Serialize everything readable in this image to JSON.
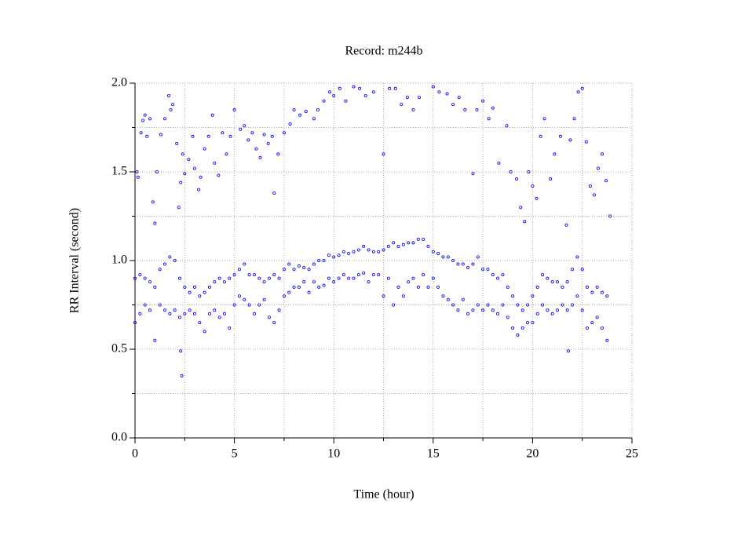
{
  "chart_data": {
    "type": "scatter",
    "title": "Record:  m244b",
    "x_label": "Time (hour)",
    "y_label": "RR Interval (second)",
    "color": "#0000ff",
    "grid": true,
    "xlim": [
      0,
      25
    ],
    "xticks": [
      0,
      5,
      10,
      15,
      20,
      25
    ],
    "xticks_minor": [
      2.5,
      7.5,
      12.5,
      17.5,
      22.5
    ],
    "ylim": [
      0,
      2.0
    ],
    "yticks": [
      {
        "value": 0,
        "label": "0.0"
      },
      {
        "value": 0.5,
        "label": "0.5"
      },
      {
        "value": 1,
        "label": "1.0"
      },
      {
        "value": 1.5,
        "label": "1.5"
      },
      {
        "value": 2,
        "label": "2.0"
      }
    ],
    "yticks_minor": [
      0.25,
      0.75,
      1.25,
      1.75
    ],
    "x": [
      0,
      0,
      0.25,
      0.25,
      0.5,
      0.5,
      0.75,
      0.75,
      1,
      1,
      1.25,
      1.25,
      1.5,
      1.5,
      1.75,
      1.75,
      2,
      2,
      2.25,
      2.25,
      2.5,
      2.5,
      2.75,
      2.75,
      3,
      3,
      3.25,
      3.25,
      3.5,
      3.5,
      3.75,
      3.75,
      4,
      4,
      4.25,
      4.25,
      4.5,
      4.5,
      4.75,
      4.75,
      5,
      5,
      5.25,
      5.25,
      5.5,
      5.5,
      5.75,
      5.75,
      6,
      6,
      6.25,
      6.25,
      6.5,
      6.5,
      6.75,
      6.75,
      7,
      7,
      7.25,
      7.25,
      7.5,
      7.5,
      7.75,
      7.75,
      8,
      8,
      8.25,
      8.25,
      8.5,
      8.5,
      8.75,
      8.75,
      9,
      9,
      9.25,
      9.25,
      9.5,
      9.5,
      9.75,
      9.75,
      10,
      10,
      10.25,
      10.25,
      10.5,
      10.5,
      10.75,
      10.75,
      11,
      11,
      11.25,
      11.25,
      11.5,
      11.5,
      11.75,
      11.75,
      12,
      12,
      12.25,
      12.25,
      12.5,
      12.5,
      12.75,
      12.75,
      13,
      13,
      13.25,
      13.25,
      13.5,
      13.5,
      13.75,
      13.75,
      14,
      14,
      14.25,
      14.25,
      14.5,
      14.5,
      14.75,
      14.75,
      15,
      15,
      15.25,
      15.25,
      15.5,
      15.5,
      15.75,
      15.75,
      16,
      16,
      16.25,
      16.25,
      16.5,
      16.5,
      16.75,
      16.75,
      17,
      17,
      17.25,
      17.25,
      17.5,
      17.5,
      17.75,
      17.75,
      18,
      18,
      18.25,
      18.25,
      18.5,
      18.5,
      18.75,
      18.75,
      19,
      19,
      19.25,
      19.25,
      19.5,
      19.5,
      19.75,
      19.75,
      20,
      20,
      20.25,
      20.25,
      20.5,
      20.5,
      20.75,
      20.75,
      21,
      21,
      21.25,
      21.25,
      21.5,
      21.5,
      21.75,
      21.75,
      22,
      22,
      22.25,
      22.25,
      22.5,
      22.5,
      22.75,
      22.75,
      23,
      23,
      23.25,
      23.25,
      23.5,
      23.5,
      23.75,
      23.75,
      0.1,
      0.15,
      0.3,
      0.4,
      0.5,
      0.6,
      0.75,
      0.9,
      1.0,
      1.1,
      1.3,
      1.5,
      1.7,
      1.8,
      1.9,
      2.1,
      2.2,
      2.3,
      2.4,
      2.5,
      2.7,
      2.9,
      3.0,
      3.2,
      3.3,
      3.5,
      3.7,
      3.9,
      4.0,
      4.2,
      4.4,
      4.6,
      4.8,
      5.0,
      5.3,
      5.5,
      5.7,
      5.9,
      6.1,
      6.3,
      6.5,
      6.7,
      6.9,
      7.0,
      7.2,
      7.5,
      7.8,
      8.0,
      8.3,
      8.6,
      9.0,
      9.2,
      9.5,
      9.8,
      10.0,
      10.3,
      10.6,
      11.0,
      11.3,
      11.6,
      12.0,
      12.5,
      12.8,
      13.1,
      13.4,
      13.7,
      14.0,
      14.3,
      15.0,
      15.3,
      15.7,
      16.0,
      16.3,
      16.6,
      17.0,
      17.2,
      17.5,
      17.8,
      18.0,
      18.3,
      18.7,
      18.9,
      19.2,
      19.4,
      19.6,
      19.8,
      20.0,
      20.2,
      20.4,
      20.6,
      20.9,
      21.1,
      21.4,
      21.7,
      21.9,
      22.1,
      22.3,
      22.5,
      22.7,
      22.9,
      23.1,
      23.3,
      23.5,
      23.7,
      23.9,
      2.3,
      2.35,
      21.8
    ],
    "values": [
      0.65,
      0.9,
      0.7,
      0.92,
      0.75,
      0.9,
      0.72,
      0.88,
      0.55,
      0.85,
      0.75,
      0.95,
      0.72,
      0.98,
      0.7,
      1.02,
      0.72,
      1.0,
      0.68,
      0.9,
      0.7,
      0.85,
      0.72,
      0.82,
      0.7,
      0.85,
      0.65,
      0.8,
      0.6,
      0.82,
      0.7,
      0.85,
      0.72,
      0.88,
      0.68,
      0.9,
      0.7,
      0.88,
      0.62,
      0.9,
      0.75,
      0.92,
      0.8,
      0.95,
      0.78,
      0.98,
      0.75,
      0.92,
      0.7,
      0.92,
      0.75,
      0.9,
      0.78,
      0.88,
      0.68,
      0.9,
      0.65,
      0.92,
      0.72,
      0.9,
      0.8,
      0.95,
      0.82,
      0.98,
      0.85,
      0.95,
      0.85,
      0.97,
      0.88,
      0.96,
      0.82,
      0.95,
      0.88,
      0.98,
      0.85,
      1.0,
      0.86,
      1.0,
      0.9,
      1.03,
      0.88,
      1.02,
      0.9,
      1.03,
      0.92,
      1.05,
      0.9,
      1.04,
      0.9,
      1.05,
      0.92,
      1.06,
      0.93,
      1.08,
      0.88,
      1.06,
      0.92,
      1.05,
      0.92,
      1.05,
      0.8,
      1.06,
      0.9,
      1.08,
      0.75,
      1.1,
      0.85,
      1.08,
      0.8,
      1.09,
      0.88,
      1.1,
      0.9,
      1.1,
      0.85,
      1.12,
      0.92,
      1.12,
      0.85,
      1.08,
      0.9,
      1.05,
      0.85,
      1.04,
      0.8,
      1.02,
      0.78,
      1.02,
      0.75,
      1.0,
      0.72,
      0.98,
      0.78,
      0.98,
      0.7,
      0.96,
      0.72,
      0.98,
      0.75,
      1.02,
      0.72,
      0.95,
      0.75,
      0.95,
      0.72,
      0.92,
      0.7,
      0.9,
      0.75,
      0.92,
      0.68,
      0.85,
      0.62,
      0.8,
      0.58,
      0.75,
      0.62,
      0.72,
      0.65,
      0.75,
      0.65,
      0.8,
      0.7,
      0.85,
      0.75,
      0.92,
      0.72,
      0.9,
      0.7,
      0.88,
      0.72,
      0.88,
      0.75,
      0.85,
      0.72,
      0.88,
      0.75,
      0.95,
      0.8,
      1.02,
      0.72,
      0.95,
      0.62,
      0.85,
      0.65,
      0.82,
      0.68,
      0.85,
      0.62,
      0.82,
      0.55,
      0.8,
      1.5,
      1.47,
      1.72,
      1.79,
      1.82,
      1.7,
      1.8,
      1.33,
      1.21,
      1.5,
      1.71,
      1.8,
      1.93,
      1.85,
      1.88,
      1.66,
      1.3,
      1.44,
      1.6,
      1.49,
      1.57,
      1.7,
      1.52,
      1.4,
      1.47,
      1.63,
      1.7,
      1.82,
      1.55,
      1.48,
      1.72,
      1.6,
      1.7,
      1.85,
      1.74,
      1.76,
      1.68,
      1.72,
      1.63,
      1.58,
      1.71,
      1.66,
      1.7,
      1.38,
      1.6,
      1.72,
      1.77,
      1.85,
      1.82,
      1.84,
      1.8,
      1.85,
      1.9,
      1.95,
      1.93,
      1.97,
      1.9,
      1.98,
      1.97,
      1.93,
      1.95,
      1.6,
      1.97,
      1.97,
      1.88,
      1.92,
      1.85,
      1.92,
      1.98,
      1.95,
      1.94,
      1.88,
      1.92,
      1.85,
      1.49,
      1.85,
      1.9,
      1.8,
      1.86,
      1.55,
      1.76,
      1.5,
      1.46,
      1.3,
      1.22,
      1.5,
      1.42,
      1.35,
      1.7,
      1.8,
      1.46,
      1.6,
      1.7,
      1.2,
      1.68,
      1.8,
      1.95,
      1.97,
      1.67,
      1.42,
      1.37,
      1.52,
      1.6,
      1.45,
      1.25,
      0.49,
      0.35,
      0.49
    ]
  }
}
